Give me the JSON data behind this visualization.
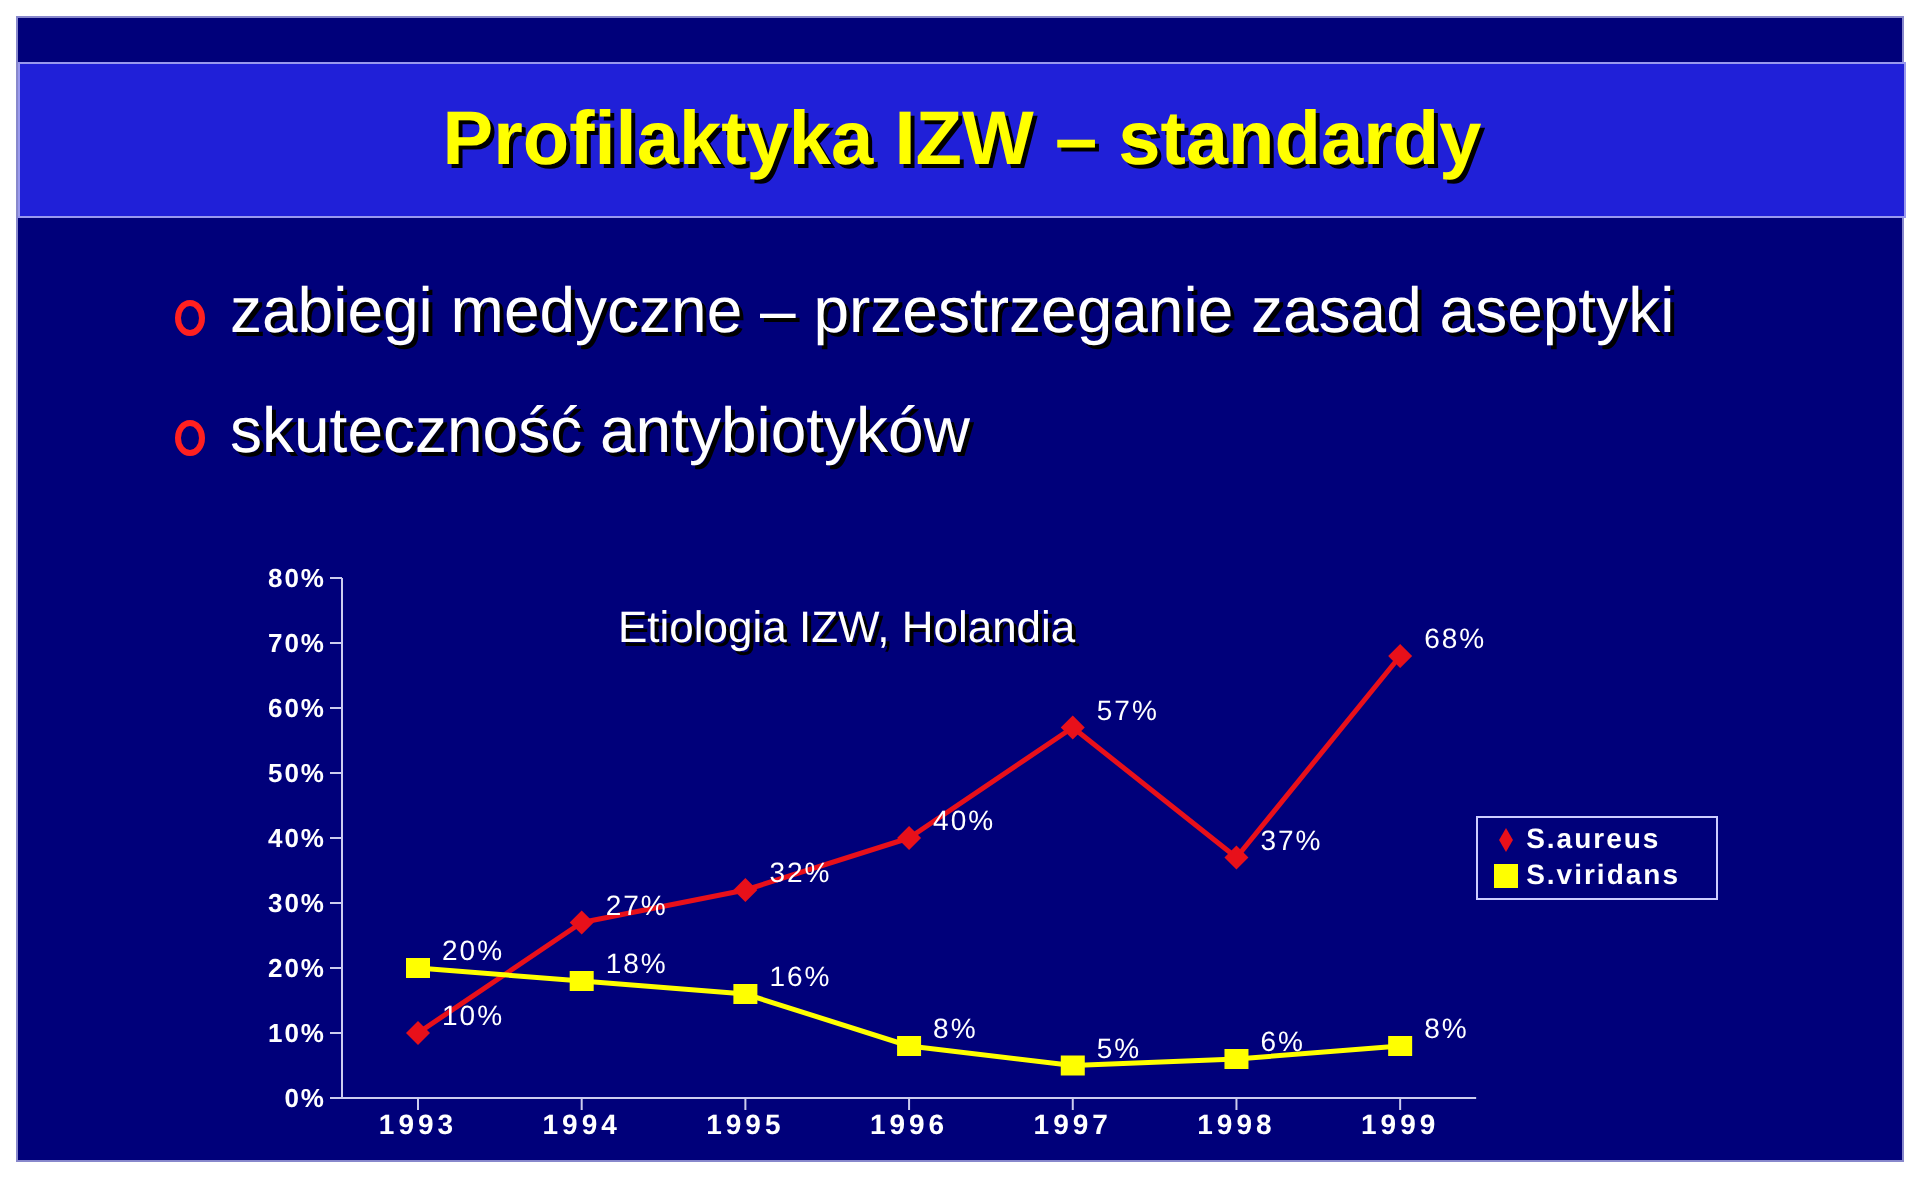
{
  "chart_data": {
    "type": "line",
    "title": "Profilaktyka IZW – standardy",
    "subtitle": "Etiologia IZW, Holandia",
    "annotations": [
      "zabiegi medyczne – przestrzeganie zasad aseptyki",
      "skuteczność antybiotyków"
    ],
    "categories": [
      "1993",
      "1994",
      "1995",
      "1996",
      "1997",
      "1998",
      "1999"
    ],
    "series": [
      {
        "name": "S.aureus",
        "color": "#e8101a",
        "marker": "diamond",
        "values": [
          10,
          27,
          32,
          40,
          57,
          37,
          68
        ],
        "value_labels": [
          "10%",
          "27%",
          "32%",
          "40%",
          "57%",
          "37%",
          "68%"
        ]
      },
      {
        "name": "S.viridans",
        "color": "#ffff00",
        "marker": "square",
        "values": [
          20,
          18,
          16,
          8,
          5,
          6,
          8
        ],
        "value_labels": [
          "20%",
          "18%",
          "16%",
          "8%",
          "5%",
          "6%",
          "8%"
        ]
      }
    ],
    "ylim": [
      0,
      80
    ],
    "yticks": [
      {
        "value": 0,
        "label": "0%"
      },
      {
        "value": 10,
        "label": "10%"
      },
      {
        "value": 20,
        "label": "20%"
      },
      {
        "value": 30,
        "label": "30%"
      },
      {
        "value": 40,
        "label": "40%"
      },
      {
        "value": 50,
        "label": "50%"
      },
      {
        "value": 60,
        "label": "60%"
      },
      {
        "value": 70,
        "label": "70%"
      },
      {
        "value": 80,
        "label": "80%"
      }
    ],
    "grid": false,
    "legend": "right"
  }
}
